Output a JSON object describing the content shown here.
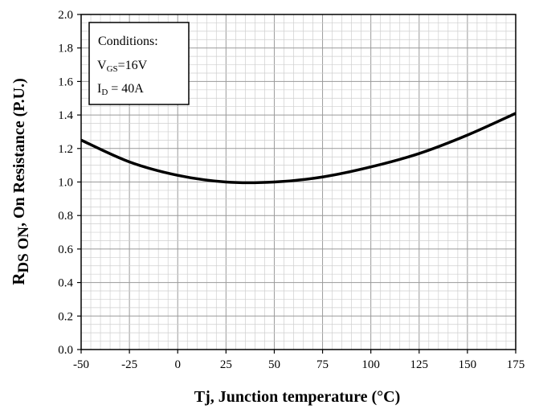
{
  "chart_data": {
    "type": "line",
    "xlabel": "Tj, Junction temperature (°C)",
    "ylabel_main": "R",
    "ylabel_sub": "DS ON",
    "ylabel_rest": ", On Resistance (P.U.)",
    "xlim": [
      -50,
      175
    ],
    "ylim": [
      0.0,
      2.0
    ],
    "x_ticks": [
      -50,
      -25,
      0,
      25,
      50,
      75,
      100,
      125,
      150,
      175
    ],
    "x_tick_labels": [
      "-50",
      "-25",
      "0",
      "25",
      "50",
      "75",
      "100",
      "125",
      "150",
      "175"
    ],
    "y_ticks": [
      0.0,
      0.2,
      0.4,
      0.6,
      0.8,
      1.0,
      1.2,
      1.4,
      1.6,
      1.8,
      2.0
    ],
    "y_tick_labels": [
      "0.0",
      "0.2",
      "0.4",
      "0.6",
      "0.8",
      "1.0",
      "1.2",
      "1.4",
      "1.6",
      "1.8",
      "2.0"
    ],
    "grid": true,
    "series": [
      {
        "x": [
          -50,
          -25,
          0,
          25,
          50,
          75,
          100,
          125,
          150,
          175
        ],
        "y": [
          1.25,
          1.12,
          1.04,
          1.0,
          1.0,
          1.03,
          1.09,
          1.17,
          1.28,
          1.41
        ],
        "color": "#000000"
      }
    ],
    "annotation": {
      "title": "Conditions:",
      "line1_main": "V",
      "line1_sub": "GS",
      "line1_rest": "=16V",
      "line2_main": "I",
      "line2_sub": "D",
      "line2_rest": " = 40A"
    }
  }
}
